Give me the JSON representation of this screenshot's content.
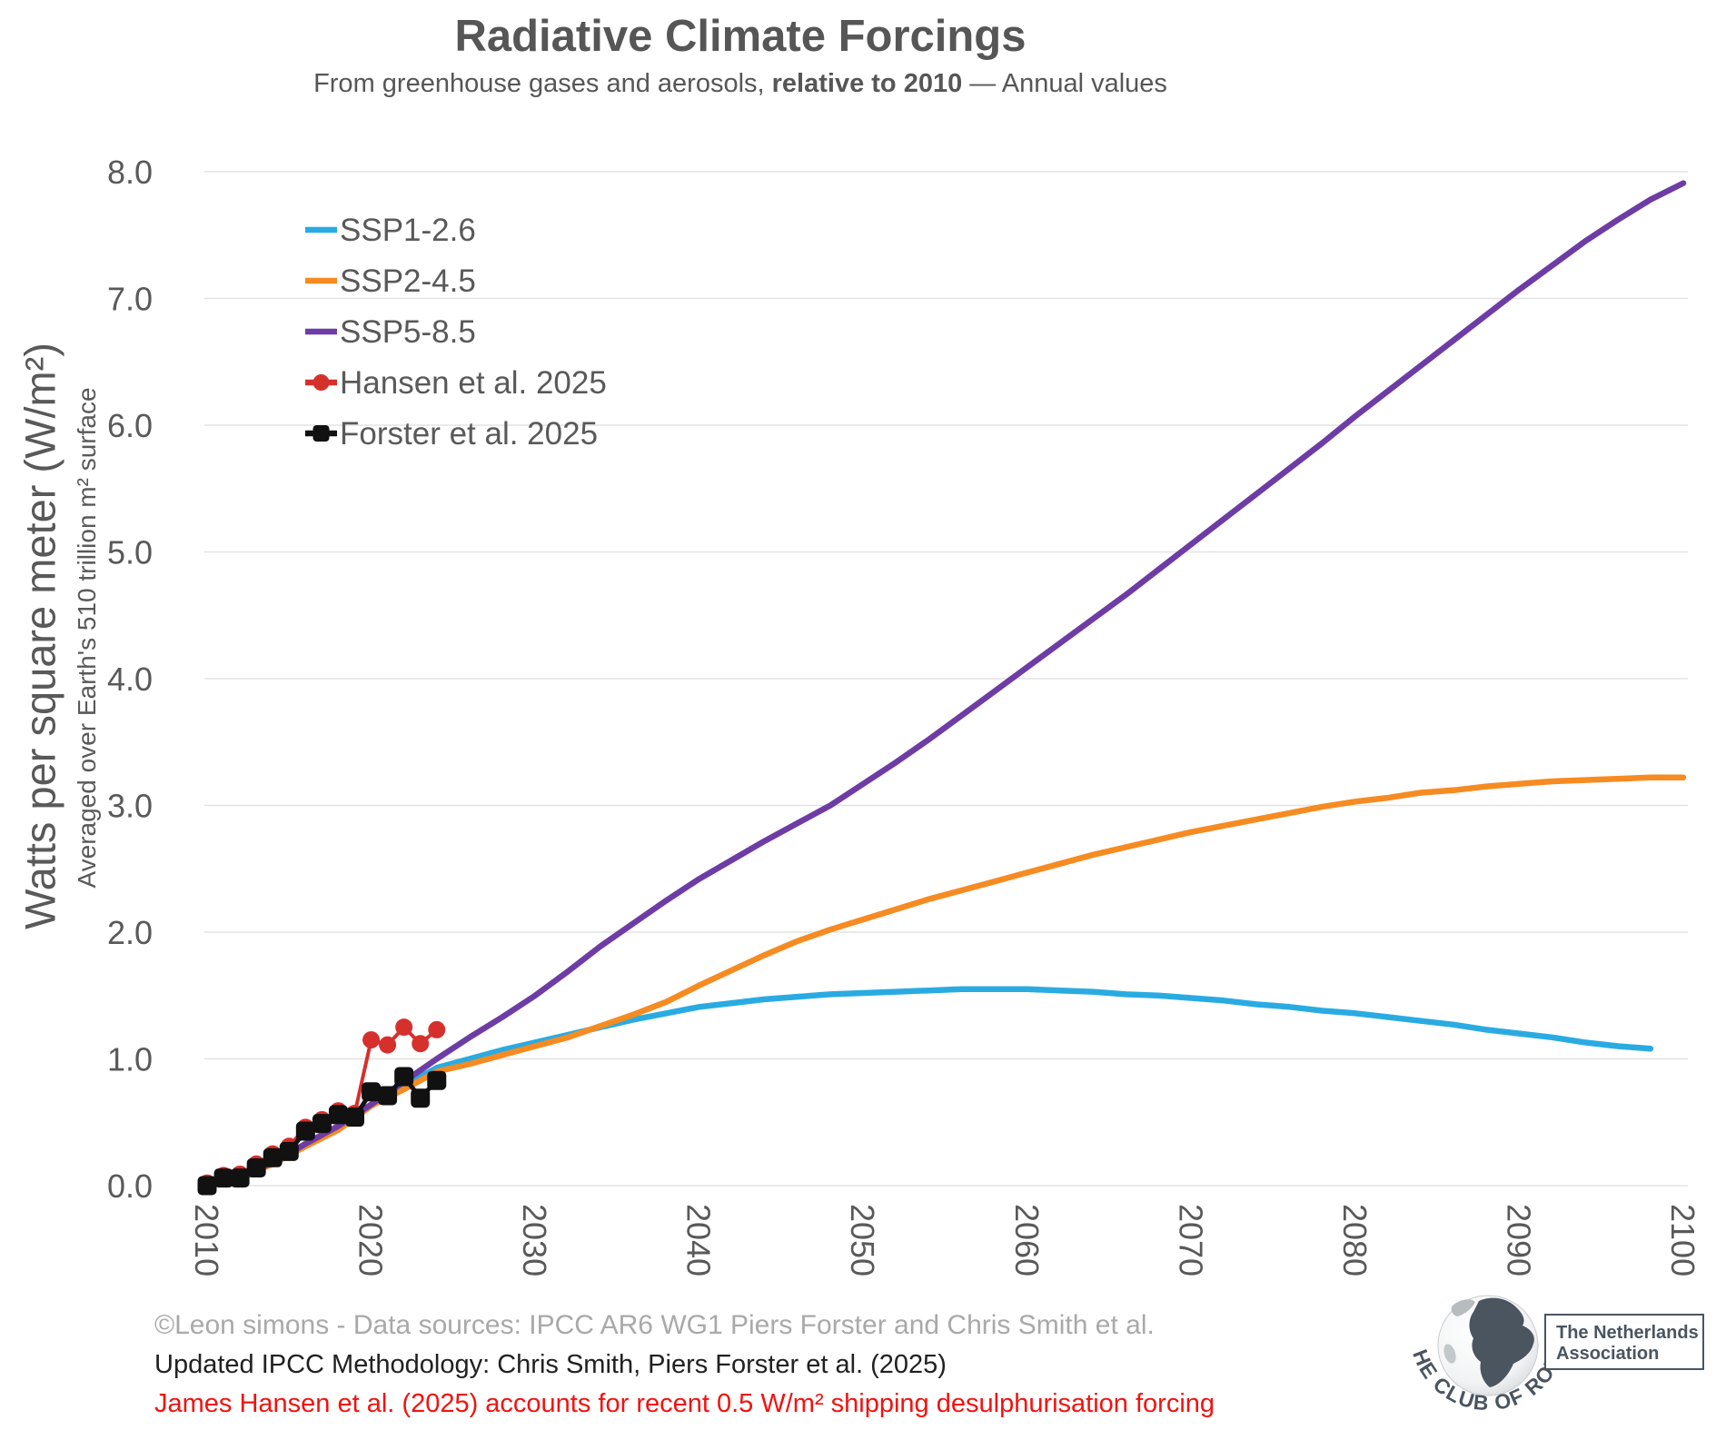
{
  "header": {
    "title": "Radiative Climate Forcings",
    "subtitle_prefix": "From greenhouse gases and aerosols, ",
    "subtitle_bold": "relative to 2010",
    "subtitle_suffix": " — Annual values"
  },
  "axes": {
    "y_title": "Watts per square meter (W/m²)",
    "y_subtitle": "Averaged over Earth's 510 trillion m² surface",
    "y_ticks": [
      "0.0",
      "1.0",
      "2.0",
      "3.0",
      "4.0",
      "5.0",
      "6.0",
      "7.0",
      "8.0"
    ],
    "x_ticks": [
      "2010",
      "2020",
      "2030",
      "2040",
      "2050",
      "2060",
      "2070",
      "2080",
      "2090",
      "2100"
    ]
  },
  "chart_data": {
    "type": "line",
    "title": "Radiative Climate Forcings",
    "xlabel": "",
    "ylabel": "Watts per square meter (W/m²)",
    "xlim": [
      2010,
      2100
    ],
    "ylim": [
      0.0,
      8.0
    ],
    "grid": "horizontal",
    "legend_position": "upper-left-inside",
    "x_tick_rotation_deg": 90,
    "series": [
      {
        "name": "SSP1-2.6",
        "color": "#29ABE2",
        "marker": "none",
        "x": [
          2010,
          2012,
          2014,
          2016,
          2018,
          2020,
          2022,
          2024,
          2026,
          2028,
          2030,
          2032,
          2034,
          2036,
          2038,
          2040,
          2042,
          2044,
          2046,
          2048,
          2050,
          2052,
          2054,
          2056,
          2058,
          2060,
          2062,
          2064,
          2066,
          2068,
          2070,
          2072,
          2074,
          2076,
          2078,
          2080,
          2082,
          2084,
          2086,
          2088,
          2090,
          2092,
          2094,
          2096,
          2098
        ],
        "values": [
          0.0,
          0.08,
          0.18,
          0.32,
          0.46,
          0.64,
          0.79,
          0.93,
          1.0,
          1.07,
          1.13,
          1.19,
          1.25,
          1.31,
          1.36,
          1.41,
          1.44,
          1.47,
          1.49,
          1.51,
          1.52,
          1.53,
          1.54,
          1.55,
          1.55,
          1.55,
          1.54,
          1.53,
          1.51,
          1.5,
          1.48,
          1.46,
          1.43,
          1.41,
          1.38,
          1.36,
          1.33,
          1.3,
          1.27,
          1.23,
          1.2,
          1.17,
          1.13,
          1.1,
          1.08
        ]
      },
      {
        "name": "SSP2-4.5",
        "color": "#F68B22",
        "marker": "none",
        "x": [
          2010,
          2012,
          2014,
          2016,
          2018,
          2020,
          2022,
          2024,
          2026,
          2028,
          2030,
          2032,
          2034,
          2036,
          2038,
          2040,
          2042,
          2044,
          2046,
          2048,
          2050,
          2052,
          2054,
          2056,
          2058,
          2060,
          2062,
          2064,
          2066,
          2068,
          2070,
          2072,
          2074,
          2076,
          2078,
          2080,
          2082,
          2084,
          2086,
          2088,
          2090,
          2092,
          2094,
          2096,
          2098,
          2100
        ],
        "values": [
          0.0,
          0.07,
          0.17,
          0.31,
          0.44,
          0.63,
          0.76,
          0.9,
          0.96,
          1.03,
          1.1,
          1.17,
          1.26,
          1.35,
          1.45,
          1.58,
          1.7,
          1.82,
          1.93,
          2.02,
          2.1,
          2.18,
          2.26,
          2.33,
          2.4,
          2.47,
          2.54,
          2.61,
          2.67,
          2.73,
          2.79,
          2.84,
          2.89,
          2.94,
          2.99,
          3.03,
          3.06,
          3.1,
          3.12,
          3.15,
          3.17,
          3.19,
          3.2,
          3.21,
          3.22,
          3.22
        ]
      },
      {
        "name": "SSP5-8.5",
        "color": "#6E3CA5",
        "marker": "none",
        "x": [
          2010,
          2012,
          2014,
          2016,
          2018,
          2020,
          2022,
          2024,
          2026,
          2028,
          2030,
          2032,
          2034,
          2036,
          2038,
          2040,
          2042,
          2044,
          2046,
          2048,
          2050,
          2052,
          2054,
          2056,
          2058,
          2060,
          2062,
          2064,
          2066,
          2068,
          2070,
          2072,
          2074,
          2076,
          2078,
          2080,
          2082,
          2084,
          2086,
          2088,
          2090,
          2092,
          2094,
          2096,
          2098,
          2100
        ],
        "values": [
          0.0,
          0.08,
          0.18,
          0.33,
          0.47,
          0.64,
          0.82,
          1.0,
          1.17,
          1.33,
          1.5,
          1.69,
          1.89,
          2.07,
          2.25,
          2.42,
          2.57,
          2.72,
          2.86,
          3.0,
          3.17,
          3.34,
          3.52,
          3.71,
          3.9,
          4.09,
          4.28,
          4.47,
          4.66,
          4.86,
          5.06,
          5.26,
          5.46,
          5.66,
          5.86,
          6.07,
          6.27,
          6.47,
          6.67,
          6.87,
          7.07,
          7.26,
          7.45,
          7.62,
          7.78,
          7.91
        ]
      },
      {
        "name": "Hansen et al. 2025",
        "color": "#D6302C",
        "marker": "circle",
        "x": [
          2010,
          2011,
          2012,
          2013,
          2014,
          2015,
          2016,
          2017,
          2018,
          2019,
          2020,
          2021,
          2022,
          2023,
          2024
        ],
        "values": [
          0.02,
          0.08,
          0.09,
          0.17,
          0.25,
          0.31,
          0.46,
          0.52,
          0.59,
          0.57,
          1.15,
          1.11,
          1.25,
          1.12,
          1.23
        ]
      },
      {
        "name": "Forster et al. 2025",
        "color": "#111111",
        "marker": "square",
        "x": [
          2010,
          2011,
          2012,
          2013,
          2014,
          2015,
          2016,
          2017,
          2018,
          2019,
          2020,
          2021,
          2022,
          2023,
          2024
        ],
        "values": [
          0.0,
          0.06,
          0.06,
          0.14,
          0.22,
          0.27,
          0.43,
          0.49,
          0.56,
          0.54,
          0.74,
          0.71,
          0.86,
          0.69,
          0.83
        ]
      }
    ]
  },
  "footer": {
    "line1": "©Leon simons - Data sources: IPCC AR6 WG1 Piers Forster and Chris Smith et al.",
    "line2": "Updated IPCC Methodology: Chris Smith, Piers Forster et al. (2025)",
    "line3": "James Hansen et al. (2025) accounts for recent 0.5 W/m² shipping desulphurisation forcing"
  },
  "logo": {
    "curved_text": "THE CLUB OF ROME",
    "box_line1": "The Netherlands",
    "box_line2": "Association"
  },
  "colors": {
    "ssp1": "#29ABE2",
    "ssp2": "#F68B22",
    "ssp5": "#6E3CA5",
    "hansen_red": "#D6302C",
    "forster_black": "#111111",
    "text_gray": "#595959",
    "footer_gray": "#A9A9A9",
    "footer_red": "#F2120F",
    "gridline": "#E3E3E3",
    "logo_slate": "#4A5560"
  }
}
